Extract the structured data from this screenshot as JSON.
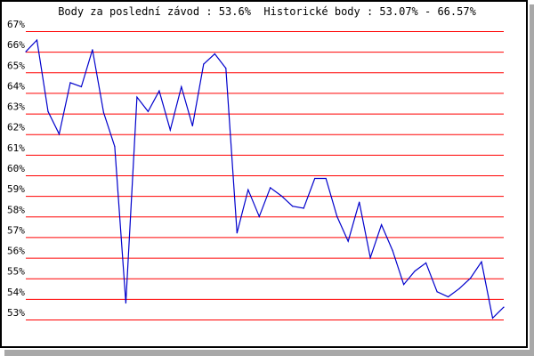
{
  "chart_data": {
    "type": "line",
    "title": "Body za poslední závod : 53.6%  Historické body : 53.07% - 66.57%",
    "xlabel": "",
    "ylabel": "",
    "ylim": [
      53,
      67
    ],
    "y_ticks": [
      "53%",
      "54%",
      "55%",
      "56%",
      "57%",
      "58%",
      "59%",
      "60%",
      "61%",
      "62%",
      "63%",
      "64%",
      "65%",
      "66%",
      "67%"
    ],
    "grid": true,
    "grid_color": "#ff0000",
    "line_color": "#0000cc",
    "series": [
      {
        "values": [
          66.0,
          66.57,
          63.1,
          62.0,
          64.5,
          64.3,
          66.1,
          63.05,
          61.4,
          53.8,
          63.8,
          63.1,
          64.1,
          62.2,
          64.3,
          62.4,
          65.4,
          65.9,
          65.2,
          57.2,
          59.3,
          58.0,
          59.4,
          59.0,
          58.5,
          58.4,
          59.85,
          59.85,
          58.0,
          56.8,
          58.7,
          56.0,
          57.6,
          56.35,
          54.7,
          55.35,
          55.75,
          54.35,
          54.1,
          54.5,
          55.0,
          55.8,
          53.07,
          53.6
        ]
      }
    ]
  }
}
